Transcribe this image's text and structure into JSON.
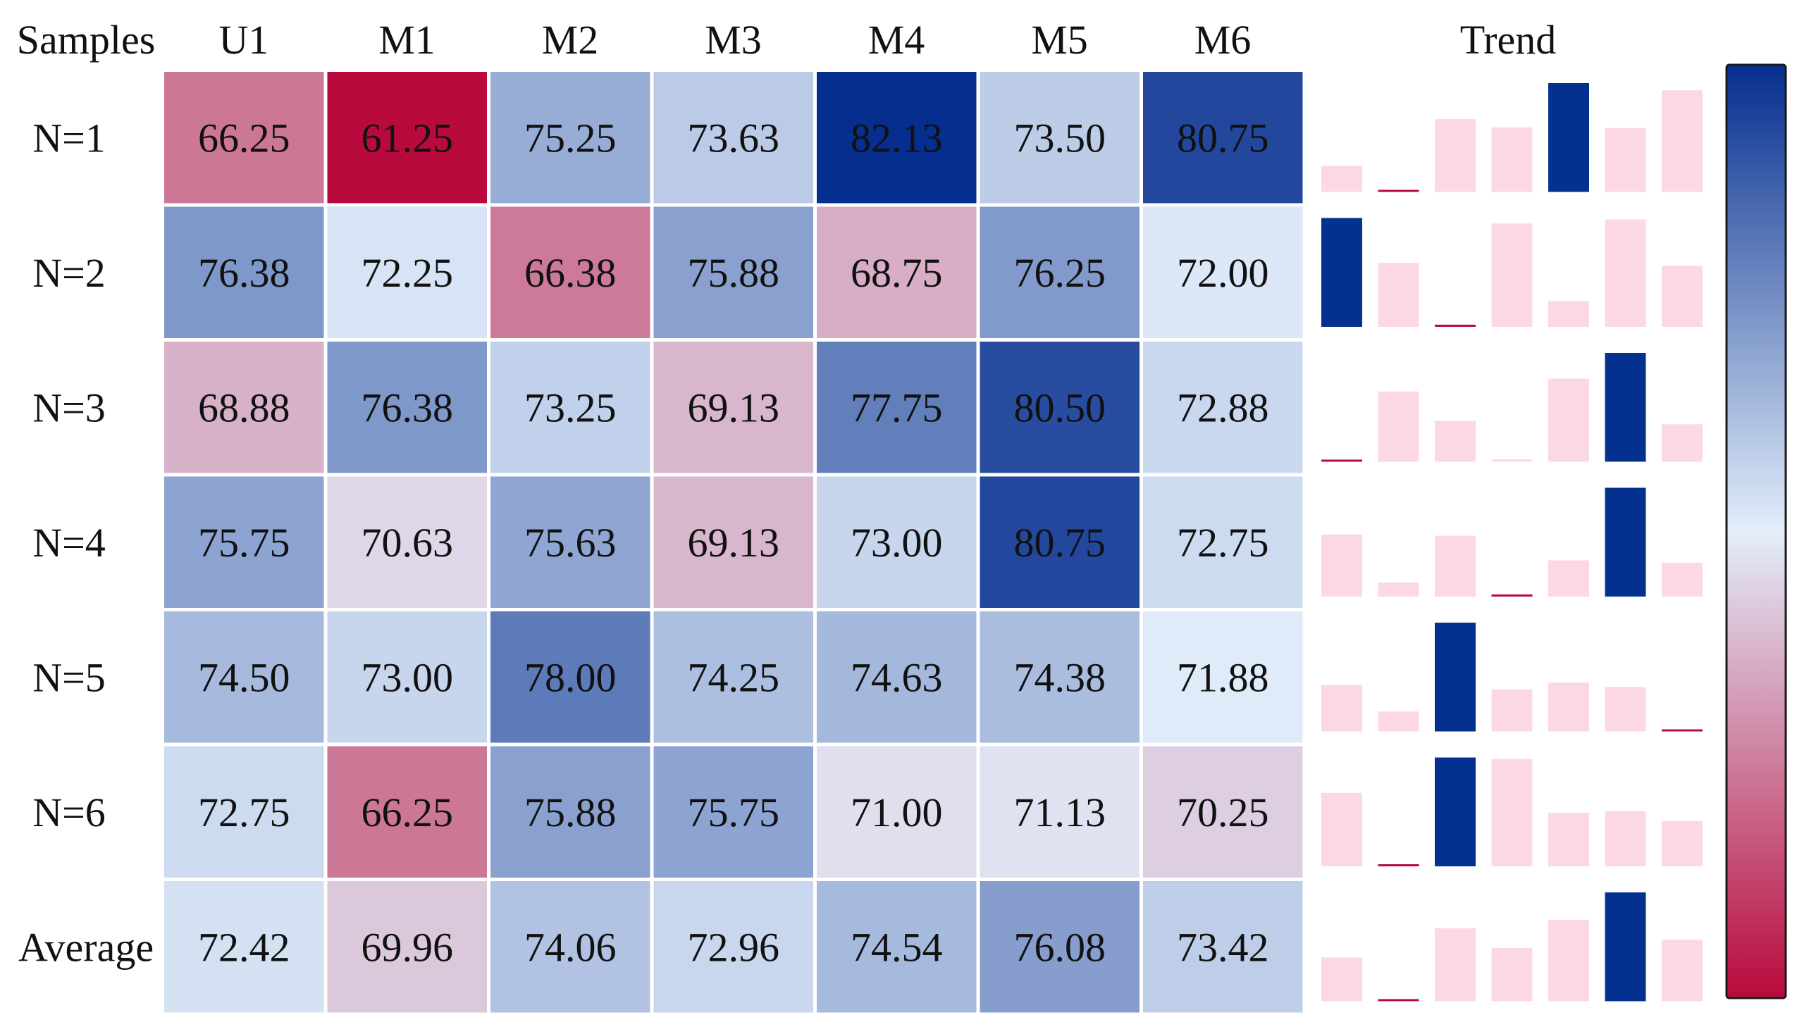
{
  "chart_data": {
    "type": "heatmap",
    "corner_label": "Samples",
    "columns": [
      "U1",
      "M1",
      "M2",
      "M3",
      "M4",
      "M5",
      "M6"
    ],
    "rows": [
      {
        "label": "N=1",
        "values": [
          "66.25",
          "61.25",
          "75.25",
          "73.63",
          "82.13",
          "73.50",
          "80.75"
        ]
      },
      {
        "label": "N=2",
        "values": [
          "76.38",
          "72.25",
          "66.38",
          "75.88",
          "68.75",
          "76.25",
          "72.00"
        ]
      },
      {
        "label": "N=3",
        "values": [
          "68.88",
          "76.38",
          "73.25",
          "69.13",
          "77.75",
          "80.50",
          "72.88"
        ]
      },
      {
        "label": "N=4",
        "values": [
          "75.75",
          "70.63",
          "75.63",
          "69.13",
          "73.00",
          "80.75",
          "72.75"
        ]
      },
      {
        "label": "N=5",
        "values": [
          "74.50",
          "73.00",
          "78.00",
          "74.25",
          "74.63",
          "74.38",
          "71.88"
        ]
      },
      {
        "label": "N=6",
        "values": [
          "72.75",
          "66.25",
          "75.88",
          "75.75",
          "71.00",
          "71.13",
          "70.25"
        ]
      },
      {
        "label": "Average",
        "values": [
          "72.42",
          "69.96",
          "74.06",
          "72.96",
          "74.54",
          "76.08",
          "73.42"
        ]
      }
    ],
    "trend_label": "Trend",
    "value_range": [
      61.25,
      82.13
    ],
    "colorscale": {
      "low": "#b80a3c",
      "mid": "#e3eefb",
      "high": "#052e8e"
    },
    "trend_colors": {
      "max": "#043190",
      "min": "#b80a3c",
      "other": "#fcd8e2"
    }
  }
}
